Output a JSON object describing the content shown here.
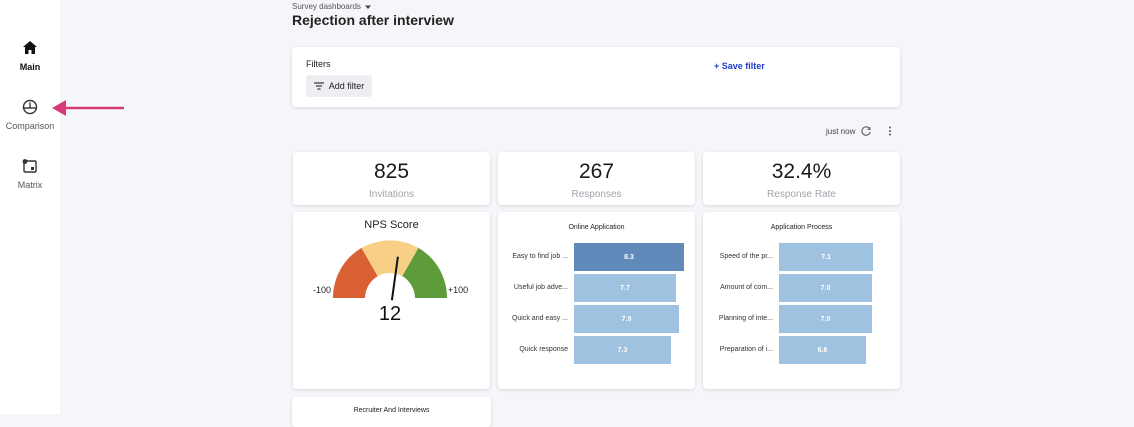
{
  "sidebar": {
    "items": [
      {
        "label": "Main",
        "icon": "home-icon"
      },
      {
        "label": "Comparison",
        "icon": "gauge-icon"
      },
      {
        "label": "Matrix",
        "icon": "matrix-icon"
      }
    ]
  },
  "header": {
    "breadcrumb": "Survey dashboards",
    "title": "Rejection after interview"
  },
  "filters": {
    "label": "Filters",
    "add_filter": "Add filter",
    "save_filter": "+ Save filter"
  },
  "toolbar": {
    "updated": "just now"
  },
  "kpis": [
    {
      "value": "825",
      "caption": "Invitations"
    },
    {
      "value": "267",
      "caption": "Responses"
    },
    {
      "value": "32.4%",
      "caption": "Response Rate"
    }
  ],
  "nps": {
    "title": "NPS Score",
    "min_label": "-100",
    "max_label": "+100",
    "value": "12",
    "score": 12,
    "colors": {
      "low": "#d95f35",
      "mid": "#f7cf87",
      "high": "#5e9c3b"
    }
  },
  "online_application": {
    "title": "Online Application",
    "bars": [
      {
        "label": "Easy to find job ...",
        "value": "8.3",
        "score": 8.3,
        "highlight": true
      },
      {
        "label": "Useful job adve...",
        "value": "7.7",
        "score": 7.7
      },
      {
        "label": "Quick and easy ...",
        "value": "7.9",
        "score": 7.9
      },
      {
        "label": "Quick response",
        "value": "7.3",
        "score": 7.3
      }
    ]
  },
  "application_process": {
    "title": "Application Process",
    "bars": [
      {
        "label": "Speed of the pr...",
        "value": "7.1",
        "score": 7.1
      },
      {
        "label": "Amount of com...",
        "value": "7.0",
        "score": 7.0
      },
      {
        "label": "Planning of inte...",
        "value": "7.0",
        "score": 7.0
      },
      {
        "label": "Preparation of i...",
        "value": "6.6",
        "score": 6.6
      }
    ]
  },
  "recruiter": {
    "title": "Recruiter And Interviews"
  },
  "colors": {
    "bar": "#9fc2e1",
    "bar_highlight": "#5f8ab9",
    "accent": "#1f3bd1",
    "arrow": "#d63a77"
  }
}
